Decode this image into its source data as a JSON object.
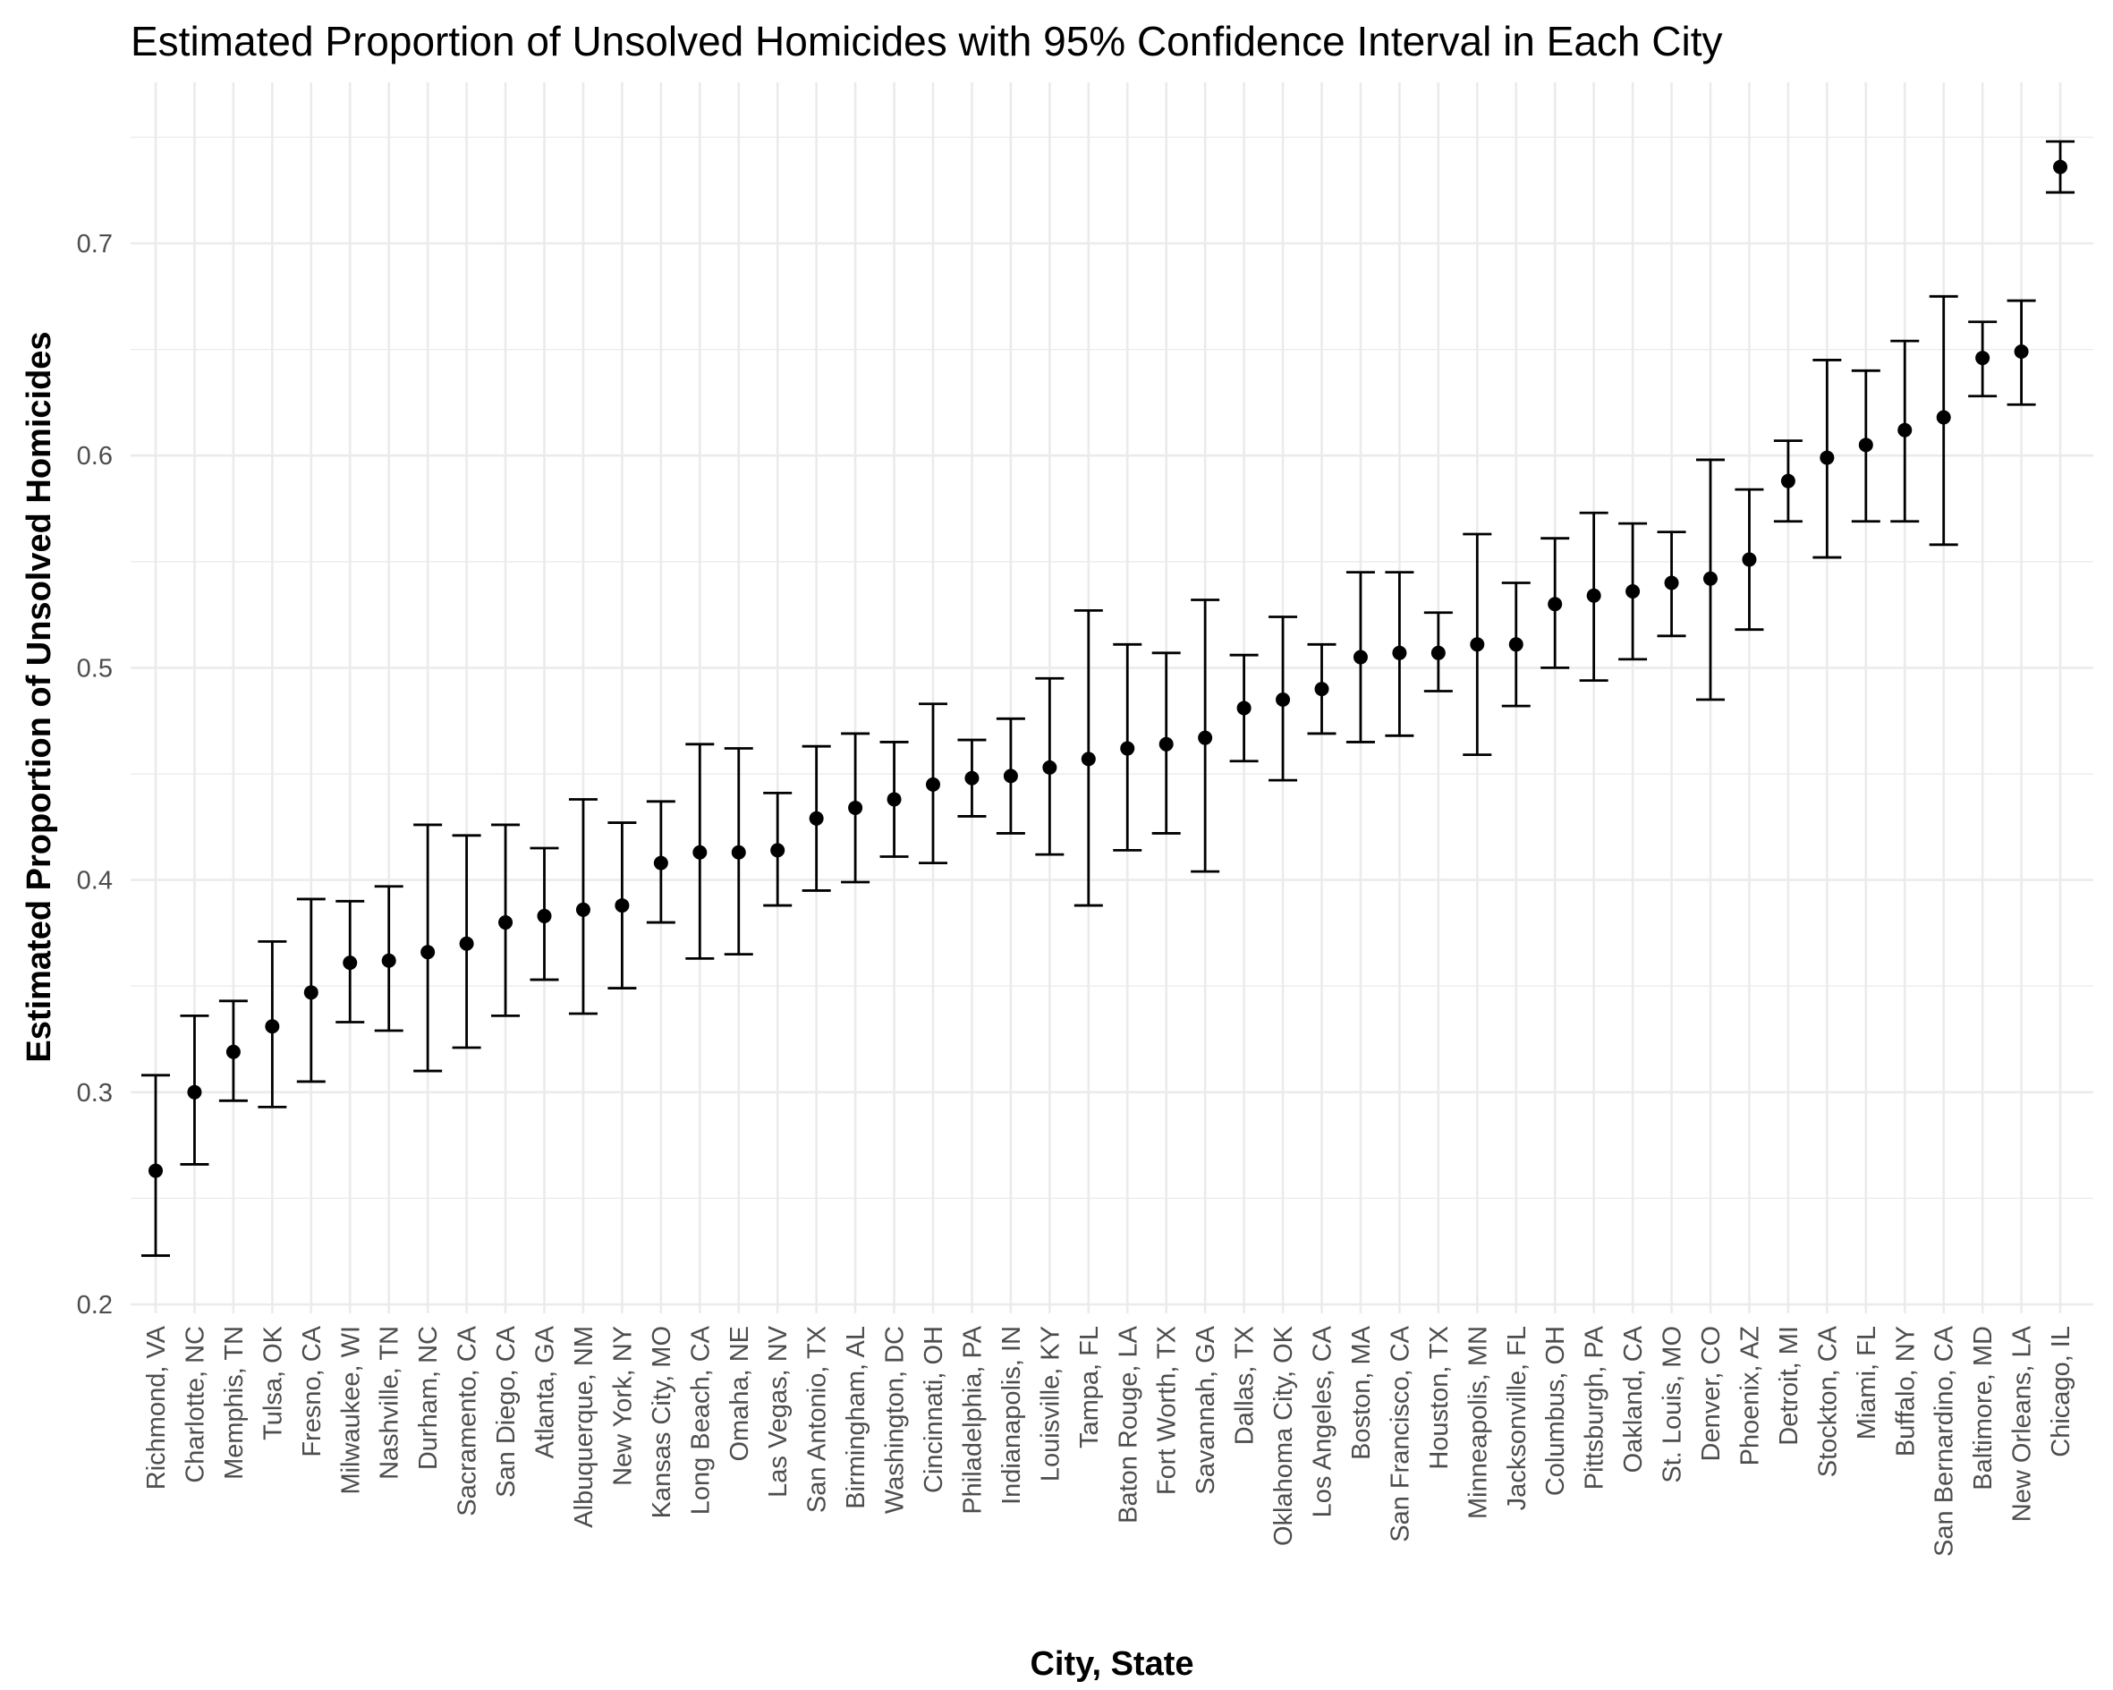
{
  "chart_data": {
    "type": "scatter",
    "title": "Estimated Proportion of Unsolved Homicides with 95% Confidence Interval in Each City",
    "xlabel": "City, State",
    "ylabel": "Estimated Proportion of Unsolved Homicides",
    "ylim": [
      0.195,
      0.755
    ],
    "yticks": [
      "0.2",
      "0.3",
      "0.4",
      "0.5",
      "0.6",
      "0.7"
    ],
    "grid": true,
    "legend": "none",
    "point_color": "#000000",
    "grid_color": "#ebebeb",
    "categories": [
      "Richmond, VA",
      "Charlotte, NC",
      "Memphis, TN",
      "Tulsa, OK",
      "Fresno, CA",
      "Milwaukee, WI",
      "Nashville, TN",
      "Durham, NC",
      "Sacramento, CA",
      "San Diego, CA",
      "Atlanta, GA",
      "Albuquerque, NM",
      "New York, NY",
      "Kansas City, MO",
      "Long Beach, CA",
      "Omaha, NE",
      "Las Vegas, NV",
      "San Antonio, TX",
      "Birmingham, AL",
      "Washington, DC",
      "Cincinnati, OH",
      "Philadelphia, PA",
      "Indianapolis, IN",
      "Louisville, KY",
      "Tampa, FL",
      "Baton Rouge, LA",
      "Fort Worth, TX",
      "Savannah, GA",
      "Dallas, TX",
      "Oklahoma City, OK",
      "Los Angeles, CA",
      "Boston, MA",
      "San Francisco, CA",
      "Houston, TX",
      "Minneapolis, MN",
      "Jacksonville, FL",
      "Columbus, OH",
      "Pittsburgh, PA",
      "Oakland, CA",
      "St. Louis, MO",
      "Denver, CO",
      "Phoenix, AZ",
      "Detroit, MI",
      "Stockton, CA",
      "Miami, FL",
      "Buffalo, NY",
      "San Bernardino, CA",
      "Baltimore, MD",
      "New Orleans, LA",
      "Chicago, IL"
    ],
    "estimate": [
      0.263,
      0.3,
      0.319,
      0.331,
      0.347,
      0.361,
      0.362,
      0.366,
      0.37,
      0.38,
      0.383,
      0.386,
      0.388,
      0.408,
      0.413,
      0.413,
      0.414,
      0.429,
      0.434,
      0.438,
      0.445,
      0.448,
      0.449,
      0.453,
      0.457,
      0.462,
      0.464,
      0.467,
      0.481,
      0.485,
      0.49,
      0.505,
      0.507,
      0.507,
      0.511,
      0.511,
      0.53,
      0.534,
      0.536,
      0.54,
      0.542,
      0.551,
      0.588,
      0.599,
      0.605,
      0.612,
      0.618,
      0.646,
      0.649,
      0.736
    ],
    "lower": [
      0.223,
      0.266,
      0.296,
      0.293,
      0.305,
      0.333,
      0.329,
      0.31,
      0.321,
      0.336,
      0.353,
      0.337,
      0.349,
      0.38,
      0.363,
      0.365,
      0.388,
      0.395,
      0.399,
      0.411,
      0.408,
      0.43,
      0.422,
      0.412,
      0.388,
      0.414,
      0.422,
      0.404,
      0.456,
      0.447,
      0.469,
      0.465,
      0.468,
      0.489,
      0.459,
      0.482,
      0.5,
      0.494,
      0.504,
      0.515,
      0.485,
      0.518,
      0.569,
      0.552,
      0.569,
      0.569,
      0.558,
      0.628,
      0.624,
      0.724
    ],
    "upper": [
      0.308,
      0.336,
      0.343,
      0.371,
      0.391,
      0.39,
      0.397,
      0.426,
      0.421,
      0.426,
      0.415,
      0.438,
      0.427,
      0.437,
      0.464,
      0.462,
      0.441,
      0.463,
      0.469,
      0.465,
      0.483,
      0.466,
      0.476,
      0.495,
      0.527,
      0.511,
      0.507,
      0.532,
      0.506,
      0.524,
      0.511,
      0.545,
      0.545,
      0.526,
      0.563,
      0.54,
      0.561,
      0.573,
      0.568,
      0.564,
      0.598,
      0.584,
      0.607,
      0.645,
      0.64,
      0.654,
      0.675,
      0.663,
      0.673,
      0.748
    ]
  }
}
